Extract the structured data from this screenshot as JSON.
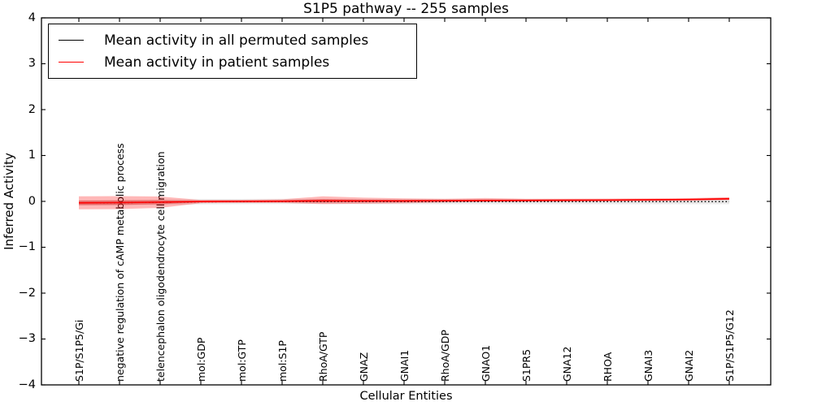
{
  "title": "S1P5 pathway -- 255 samples",
  "axes": {
    "xlabel": "Cellular Entities",
    "ylabel": "Inferred Activity",
    "ytick_labels": [
      "4",
      "3",
      "2",
      "1",
      "0",
      "−1",
      "−2",
      "−3",
      "−4"
    ],
    "ytick_values": [
      4,
      3,
      2,
      1,
      0,
      -1,
      -2,
      -3,
      -4
    ]
  },
  "legend": {
    "items": [
      {
        "label": "Mean activity in all permuted samples",
        "color": "#000000"
      },
      {
        "label": "Mean activity in patient samples",
        "color": "#ff0000"
      }
    ]
  },
  "chart_data": {
    "type": "line",
    "title": "S1P5 pathway -- 255 samples",
    "xlabel": "Cellular Entities",
    "ylabel": "Inferred Activity",
    "ylim": [
      -4,
      4
    ],
    "grid": false,
    "legend_position": "upper left",
    "categories": [
      "S1P/S1P5/Gi",
      "negative regulation of cAMP metabolic process",
      "telencephalon oligodendrocyte cell migration",
      "mol:GDP",
      "mol:GTP",
      "mol:S1P",
      "RhoA/GTP",
      "GNAZ",
      "GNAI1",
      "RhoA/GDP",
      "GNAO1",
      "S1PR5",
      "GNA12",
      "RHOA",
      "GNAI3",
      "GNAI2",
      "S1P/S1P5/G12"
    ],
    "series": [
      {
        "name": "Mean activity in all permuted samples",
        "color": "#000000",
        "style": "dotted",
        "values": [
          -0.032,
          -0.028,
          -0.02,
          -0.008,
          -0.005,
          -0.004,
          -0.004,
          -0.005,
          -0.005,
          -0.006,
          -0.006,
          -0.006,
          -0.006,
          -0.006,
          -0.006,
          -0.006,
          -0.005
        ]
      },
      {
        "name": "Mean activity in patient samples",
        "color": "#ff0000",
        "style": "solid",
        "values": [
          -0.032,
          -0.027,
          -0.018,
          -0.004,
          0.0,
          0.004,
          0.012,
          0.011,
          0.011,
          0.014,
          0.019,
          0.021,
          0.025,
          0.028,
          0.034,
          0.041,
          0.057
        ]
      }
    ],
    "bands": [
      {
        "name": "permuted-range",
        "color": "#999999",
        "opacity": 0.22,
        "upper": [
          0.023,
          0.027,
          0.035,
          0.047,
          0.05,
          0.051,
          0.051,
          0.05,
          0.05,
          0.049,
          0.049,
          0.049,
          0.049,
          0.049,
          0.049,
          0.049,
          0.05
        ],
        "lower": [
          -0.087,
          -0.083,
          -0.075,
          -0.063,
          -0.06,
          -0.059,
          -0.059,
          -0.06,
          -0.06,
          -0.061,
          -0.061,
          -0.061,
          -0.061,
          -0.061,
          -0.061,
          -0.061,
          -0.06
        ]
      },
      {
        "name": "patient-outer",
        "color": "#ff0000",
        "opacity": 0.28,
        "upper": [
          0.11,
          0.115,
          0.106,
          0.031,
          0.035,
          0.046,
          0.109,
          0.082,
          0.066,
          0.056,
          0.072,
          0.058,
          0.059,
          0.06,
          0.064,
          0.071,
          0.091
        ],
        "lower": [
          -0.174,
          -0.169,
          -0.142,
          -0.039,
          -0.035,
          -0.034,
          -0.059,
          -0.051,
          -0.042,
          -0.024,
          -0.015,
          -0.009,
          -0.004,
          0.001,
          0.007,
          0.014,
          0.028
        ]
      },
      {
        "name": "patient-inner",
        "color": "#e00000",
        "opacity": 0.35,
        "upper": [
          0.018,
          0.023,
          0.026,
          0.014,
          0.016,
          0.022,
          0.047,
          0.038,
          0.034,
          0.032,
          0.039,
          0.037,
          0.041,
          0.044,
          0.05,
          0.057,
          0.077
        ],
        "lower": [
          -0.082,
          -0.077,
          -0.062,
          -0.022,
          -0.016,
          -0.014,
          -0.023,
          -0.016,
          -0.012,
          -0.004,
          -0.001,
          0.005,
          0.009,
          0.012,
          0.018,
          0.025,
          0.037
        ]
      }
    ]
  }
}
